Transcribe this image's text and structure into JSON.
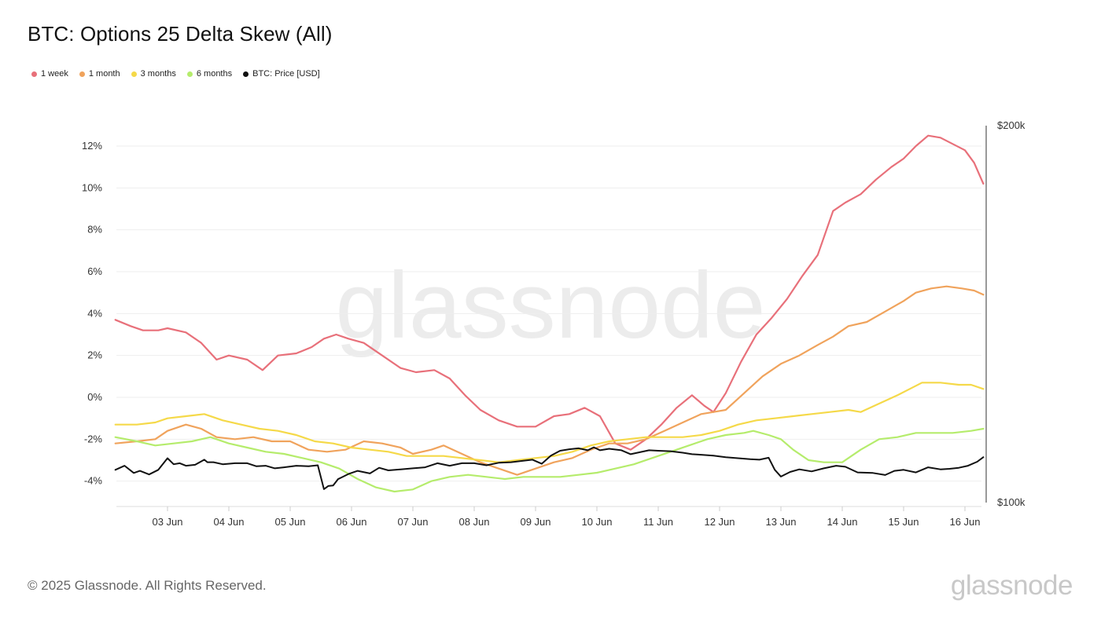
{
  "chart_data": {
    "type": "line",
    "title": "BTC: Options 25 Delta Skew (All)",
    "watermark": "glassnode",
    "x_ticks": [
      "03 Jun",
      "04 Jun",
      "05 Jun",
      "06 Jun",
      "07 Jun",
      "08 Jun",
      "09 Jun",
      "10 Jun",
      "11 Jun",
      "12 Jun",
      "13 Jun",
      "14 Jun",
      "15 Jun",
      "16 Jun"
    ],
    "x_range_days": [
      2.15,
      16.3
    ],
    "y_left": {
      "ticks": [
        "-4%",
        "-2%",
        "0%",
        "2%",
        "4%",
        "6%",
        "8%",
        "10%",
        "12%"
      ],
      "range": [
        -5,
        13
      ]
    },
    "y_right": {
      "label_top": "$200k",
      "label_bottom": "$100k",
      "range": [
        100000,
        200000
      ],
      "scale": "log"
    },
    "series": [
      {
        "name": "1 week",
        "color": "#e8707a",
        "axis": "left",
        "x": [
          2.15,
          2.4,
          2.6,
          2.85,
          3.0,
          3.3,
          3.55,
          3.8,
          4.0,
          4.3,
          4.55,
          4.8,
          5.1,
          5.35,
          5.55,
          5.75,
          5.95,
          6.2,
          6.5,
          6.8,
          7.05,
          7.35,
          7.6,
          7.85,
          8.1,
          8.4,
          8.7,
          9.0,
          9.3,
          9.55,
          9.8,
          10.05,
          10.3,
          10.55,
          10.8,
          11.05,
          11.3,
          11.55,
          11.75,
          11.9,
          12.1,
          12.35,
          12.6,
          12.85,
          13.1,
          13.35,
          13.6,
          13.85,
          14.05,
          14.3,
          14.55,
          14.8,
          15.0,
          15.2,
          15.4,
          15.6,
          15.8,
          16.0,
          16.15,
          16.3
        ],
        "values": [
          3.7,
          3.4,
          3.2,
          3.2,
          3.3,
          3.1,
          2.6,
          1.8,
          2.0,
          1.8,
          1.3,
          2.0,
          2.1,
          2.4,
          2.8,
          3.0,
          2.8,
          2.6,
          2.0,
          1.4,
          1.2,
          1.3,
          0.9,
          0.1,
          -0.6,
          -1.1,
          -1.4,
          -1.4,
          -0.9,
          -0.8,
          -0.5,
          -0.9,
          -2.2,
          -2.5,
          -2.0,
          -1.3,
          -0.5,
          0.1,
          -0.4,
          -0.7,
          0.2,
          1.7,
          3.0,
          3.8,
          4.7,
          5.8,
          6.8,
          8.9,
          9.3,
          9.7,
          10.4,
          11.0,
          11.4,
          12.0,
          12.5,
          12.4,
          12.1,
          11.8,
          11.2,
          10.2
        ]
      },
      {
        "name": "1 month",
        "color": "#f0a35c",
        "axis": "left",
        "x": [
          2.15,
          2.5,
          2.8,
          3.0,
          3.3,
          3.55,
          3.8,
          4.1,
          4.4,
          4.7,
          5.0,
          5.3,
          5.6,
          5.9,
          6.2,
          6.5,
          6.8,
          7.0,
          7.3,
          7.5,
          7.8,
          8.1,
          8.4,
          8.7,
          9.0,
          9.3,
          9.6,
          9.9,
          10.2,
          10.5,
          10.8,
          11.1,
          11.4,
          11.7,
          11.9,
          12.1,
          12.4,
          12.7,
          13.0,
          13.3,
          13.6,
          13.85,
          14.1,
          14.4,
          14.7,
          15.0,
          15.2,
          15.45,
          15.7,
          15.95,
          16.15,
          16.3
        ],
        "values": [
          -2.2,
          -2.1,
          -2.0,
          -1.6,
          -1.3,
          -1.5,
          -1.9,
          -2.0,
          -1.9,
          -2.1,
          -2.1,
          -2.5,
          -2.6,
          -2.5,
          -2.1,
          -2.2,
          -2.4,
          -2.7,
          -2.5,
          -2.3,
          -2.7,
          -3.1,
          -3.4,
          -3.7,
          -3.4,
          -3.1,
          -2.9,
          -2.5,
          -2.2,
          -2.2,
          -2.0,
          -1.6,
          -1.2,
          -0.8,
          -0.7,
          -0.6,
          0.2,
          1.0,
          1.6,
          2.0,
          2.5,
          2.9,
          3.4,
          3.6,
          4.1,
          4.6,
          5.0,
          5.2,
          5.3,
          5.2,
          5.1,
          4.9
        ]
      },
      {
        "name": "3 months",
        "color": "#f5d949",
        "axis": "left",
        "x": [
          2.15,
          2.5,
          2.8,
          3.0,
          3.3,
          3.6,
          3.9,
          4.2,
          4.5,
          4.8,
          5.1,
          5.4,
          5.7,
          6.0,
          6.3,
          6.6,
          6.9,
          7.2,
          7.5,
          7.8,
          8.1,
          8.4,
          8.7,
          9.0,
          9.3,
          9.6,
          9.9,
          10.2,
          10.5,
          10.8,
          11.1,
          11.4,
          11.7,
          12.0,
          12.3,
          12.6,
          12.9,
          13.2,
          13.5,
          13.8,
          14.1,
          14.3,
          14.6,
          14.9,
          15.1,
          15.3,
          15.6,
          15.9,
          16.1,
          16.3
        ],
        "values": [
          -1.3,
          -1.3,
          -1.2,
          -1.0,
          -0.9,
          -0.8,
          -1.1,
          -1.3,
          -1.5,
          -1.6,
          -1.8,
          -2.1,
          -2.2,
          -2.4,
          -2.5,
          -2.6,
          -2.8,
          -2.8,
          -2.8,
          -2.9,
          -3.0,
          -3.1,
          -3.0,
          -2.9,
          -2.8,
          -2.6,
          -2.3,
          -2.1,
          -2.0,
          -1.9,
          -1.9,
          -1.9,
          -1.8,
          -1.6,
          -1.3,
          -1.1,
          -1.0,
          -0.9,
          -0.8,
          -0.7,
          -0.6,
          -0.7,
          -0.3,
          0.1,
          0.4,
          0.7,
          0.7,
          0.6,
          0.6,
          0.4
        ]
      },
      {
        "name": "6 months",
        "color": "#b5ec6c",
        "axis": "left",
        "x": [
          2.15,
          2.5,
          2.8,
          3.1,
          3.4,
          3.7,
          4.0,
          4.3,
          4.6,
          4.9,
          5.2,
          5.5,
          5.8,
          6.1,
          6.4,
          6.7,
          7.0,
          7.3,
          7.6,
          7.9,
          8.2,
          8.5,
          8.8,
          9.1,
          9.4,
          9.7,
          10.0,
          10.3,
          10.6,
          10.9,
          11.2,
          11.5,
          11.8,
          12.1,
          12.4,
          12.55,
          12.8,
          13.0,
          13.2,
          13.45,
          13.7,
          14.0,
          14.3,
          14.6,
          14.9,
          15.2,
          15.5,
          15.8,
          16.1,
          16.3
        ],
        "values": [
          -1.9,
          -2.1,
          -2.3,
          -2.2,
          -2.1,
          -1.9,
          -2.2,
          -2.4,
          -2.6,
          -2.7,
          -2.9,
          -3.1,
          -3.4,
          -3.9,
          -4.3,
          -4.5,
          -4.4,
          -4.0,
          -3.8,
          -3.7,
          -3.8,
          -3.9,
          -3.8,
          -3.8,
          -3.8,
          -3.7,
          -3.6,
          -3.4,
          -3.2,
          -2.9,
          -2.6,
          -2.3,
          -2.0,
          -1.8,
          -1.7,
          -1.6,
          -1.8,
          -2.0,
          -2.5,
          -3.0,
          -3.1,
          -3.1,
          -2.5,
          -2.0,
          -1.9,
          -1.7,
          -1.7,
          -1.7,
          -1.6,
          -1.5
        ]
      },
      {
        "name": "BTC: Price [USD]",
        "color": "#111111",
        "axis": "right",
        "x": [
          2.15,
          2.3,
          2.45,
          2.55,
          2.7,
          2.85,
          3.0,
          3.1,
          3.2,
          3.3,
          3.45,
          3.6,
          3.65,
          3.75,
          3.9,
          4.1,
          4.3,
          4.45,
          4.6,
          4.75,
          4.9,
          5.1,
          5.3,
          5.45,
          5.55,
          5.62,
          5.7,
          5.78,
          5.85,
          5.95,
          6.1,
          6.3,
          6.45,
          6.6,
          6.8,
          7.0,
          7.2,
          7.4,
          7.6,
          7.8,
          8.0,
          8.2,
          8.4,
          8.6,
          8.8,
          8.95,
          9.1,
          9.25,
          9.4,
          9.55,
          9.7,
          9.85,
          9.95,
          10.05,
          10.2,
          10.4,
          10.55,
          10.7,
          10.85,
          11.0,
          11.2,
          11.4,
          11.55,
          11.7,
          11.9,
          12.1,
          12.3,
          12.5,
          12.65,
          12.8,
          12.9,
          13.0,
          13.15,
          13.3,
          13.5,
          13.7,
          13.9,
          14.05,
          14.25,
          14.5,
          14.7,
          14.85,
          15.0,
          15.2,
          15.4,
          15.6,
          15.75,
          15.9,
          16.05,
          16.2,
          16.3
        ],
        "values": [
          106200,
          107000,
          105600,
          106000,
          105300,
          106200,
          108500,
          107300,
          107500,
          107000,
          107200,
          108200,
          107700,
          107700,
          107300,
          107500,
          107500,
          106900,
          107000,
          106500,
          106700,
          107000,
          106900,
          107100,
          102500,
          103100,
          103200,
          104400,
          104800,
          105400,
          106000,
          105500,
          106600,
          106100,
          106300,
          106500,
          106700,
          107500,
          107000,
          107500,
          107500,
          107100,
          107600,
          107700,
          108000,
          108200,
          107400,
          109000,
          110000,
          110300,
          110500,
          110100,
          110700,
          110100,
          110400,
          110100,
          109300,
          109700,
          110100,
          110000,
          109900,
          109600,
          109300,
          109200,
          109000,
          108700,
          108500,
          108300,
          108200,
          108600,
          106200,
          104900,
          105800,
          106300,
          105900,
          106500,
          107000,
          106800,
          105700,
          105600,
          105200,
          106000,
          106200,
          105700,
          106700,
          106300,
          106400,
          106600,
          107000,
          107800,
          108700
        ]
      }
    ],
    "legend": [
      {
        "label": "1 week",
        "color": "#e8707a"
      },
      {
        "label": "1 month",
        "color": "#f0a35c"
      },
      {
        "label": "3 months",
        "color": "#f5d949"
      },
      {
        "label": "6 months",
        "color": "#b5ec6c"
      },
      {
        "label": "BTC: Price [USD]",
        "color": "#111111"
      }
    ]
  },
  "footer": {
    "copyright": "© 2025 Glassnode. All Rights Reserved.",
    "logo": "glassnode"
  }
}
